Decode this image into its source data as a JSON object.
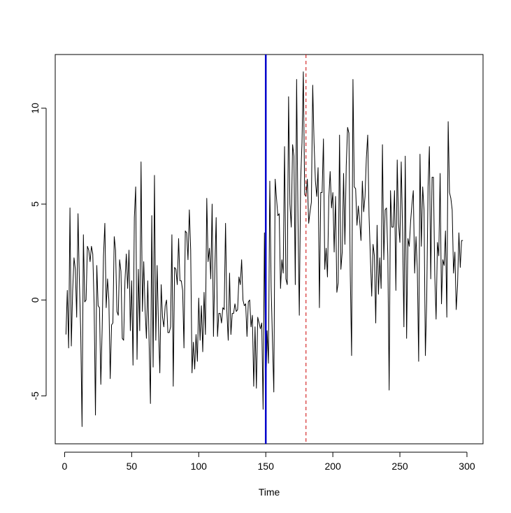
{
  "chart_data": {
    "type": "line",
    "title": "",
    "xlabel": "Time",
    "ylabel": "",
    "xlim": [
      -7,
      312
    ],
    "ylim": [
      -7.5,
      12.8
    ],
    "x_ticks": [
      0,
      50,
      100,
      150,
      200,
      250,
      300
    ],
    "y_ticks": [
      -5,
      0,
      5,
      10
    ],
    "x_tick_labels": [
      "0",
      "50",
      "100",
      "150",
      "200",
      "250",
      "300"
    ],
    "y_tick_labels": [
      "-5",
      "0",
      "5",
      "10"
    ],
    "grid": false,
    "legend": "none",
    "series": [
      {
        "color": "#000000",
        "x_start": 1,
        "x_step": 1,
        "values": [
          -1.8,
          0.5,
          -2.5,
          4.8,
          -2.4,
          0.5,
          2.2,
          1.6,
          -0.9,
          4.5,
          1.0,
          -1.6,
          -6.6,
          3.4,
          -0.1,
          0.0,
          2.8,
          2.6,
          2.0,
          2.8,
          2.4,
          -0.2,
          -6.0,
          1.8,
          -0.3,
          -0.4,
          -4.4,
          -1.5,
          2.3,
          4.0,
          -0.4,
          1.1,
          0.0,
          -4.1,
          -1.3,
          -1.2,
          3.3,
          2.6,
          -0.6,
          -0.8,
          2.1,
          1.5,
          -2.0,
          -2.1,
          1.0,
          2.4,
          0.6,
          2.6,
          -1.6,
          1.0,
          -3.4,
          4.3,
          5.9,
          -3.1,
          1.6,
          -1.6,
          7.2,
          -0.6,
          2.0,
          -0.5,
          -2.0,
          1.0,
          -2.2,
          -5.4,
          4.4,
          -3.5,
          6.5,
          -2.1,
          1.8,
          -1.4,
          -3.8,
          0.8,
          -0.9,
          -1.4,
          -0.3,
          0.0,
          -1.7,
          -1.7,
          -1.4,
          3.4,
          -4.5,
          1.7,
          1.6,
          0.8,
          3.2,
          1.0,
          1.0,
          0.5,
          -2.5,
          3.6,
          3.5,
          2.1,
          4.7,
          2.6,
          -3.8,
          -2.2,
          -3.6,
          -1.8,
          -3.2,
          0.1,
          -2.1,
          -0.3,
          -2.7,
          0.4,
          -1.8,
          5.3,
          2.0,
          2.7,
          1.1,
          5.0,
          -1.9,
          1.6,
          4.3,
          -1.9,
          -0.7,
          -0.7,
          -1.2,
          -0.4,
          -0.5,
          4.0,
          -0.6,
          -2.1,
          1.4,
          -1.8,
          -0.7,
          -0.7,
          -0.2,
          -0.6,
          -0.5,
          1.2,
          0.8,
          2.1,
          0.0,
          -0.3,
          -0.2,
          -1.9,
          -0.1,
          0.0,
          -1.4,
          -0.8,
          -4.5,
          -1.4,
          -4.6,
          -0.9,
          -1.2,
          -1.5,
          -1.2,
          -5.7,
          3.5,
          -5.0,
          -1.6,
          -3.3,
          6.2,
          0.7,
          -2.2,
          -4.8,
          6.3,
          5.3,
          4.4,
          4.5,
          0.6,
          2.1,
          1.4,
          8.0,
          1.1,
          0.8,
          10.6,
          5.0,
          3.8,
          8.1,
          7.5,
          0.8,
          11.5,
          4.3,
          -0.8,
          6.2,
          8.2,
          11.9,
          5.5,
          5.4,
          6.3,
          4.0,
          4.6,
          5.1,
          11.2,
          8.2,
          6.2,
          5.4,
          6.9,
          -0.4,
          5.6,
          5.6,
          8.4,
          1.6,
          2.7,
          1.2,
          5.3,
          6.7,
          4.8,
          5.6,
          2.5,
          5.4,
          0.4,
          0.9,
          8.6,
          1.6,
          2.5,
          6.6,
          2.9,
          7.0,
          9.0,
          8.7,
          1.3,
          -2.9,
          11.5,
          5.9,
          5.8,
          3.9,
          4.9,
          4.1,
          3.1,
          6.2,
          4.6,
          5.4,
          7.4,
          8.6,
          4.4,
          2.2,
          0.2,
          2.9,
          2.3,
          -1.2,
          3.9,
          0.3,
          2.2,
          0.6,
          8.1,
          2.1,
          4.7,
          4.8,
          2.3,
          -4.7,
          5.7,
          3.8,
          3.8,
          5.7,
          0.5,
          7.3,
          4.0,
          3.0,
          7.2,
          3.6,
          -1.4,
          7.5,
          -2.0,
          3.2,
          2.8,
          4.1,
          5.0,
          5.7,
          1.4,
          3.3,
          1.6,
          -3.2,
          7.6,
          2.8,
          5.9,
          4.7,
          -2.9,
          0.0,
          5.9,
          8.0,
          1.1,
          6.4,
          6.4,
          1.3,
          -1.0,
          3.0,
          2.3,
          6.6,
          -0.2,
          2.1,
          1.8,
          3.6,
          -0.9,
          9.3,
          5.6,
          5.3,
          4.7,
          1.4,
          2.5,
          -0.5,
          0.8,
          3.5,
          1.7,
          3.1,
          3.1
        ]
      }
    ],
    "vlines": [
      {
        "x": 150,
        "color": "#0000cc",
        "style": "solid"
      },
      {
        "x": 180,
        "color": "#cc0000",
        "style": "dashed"
      }
    ]
  }
}
